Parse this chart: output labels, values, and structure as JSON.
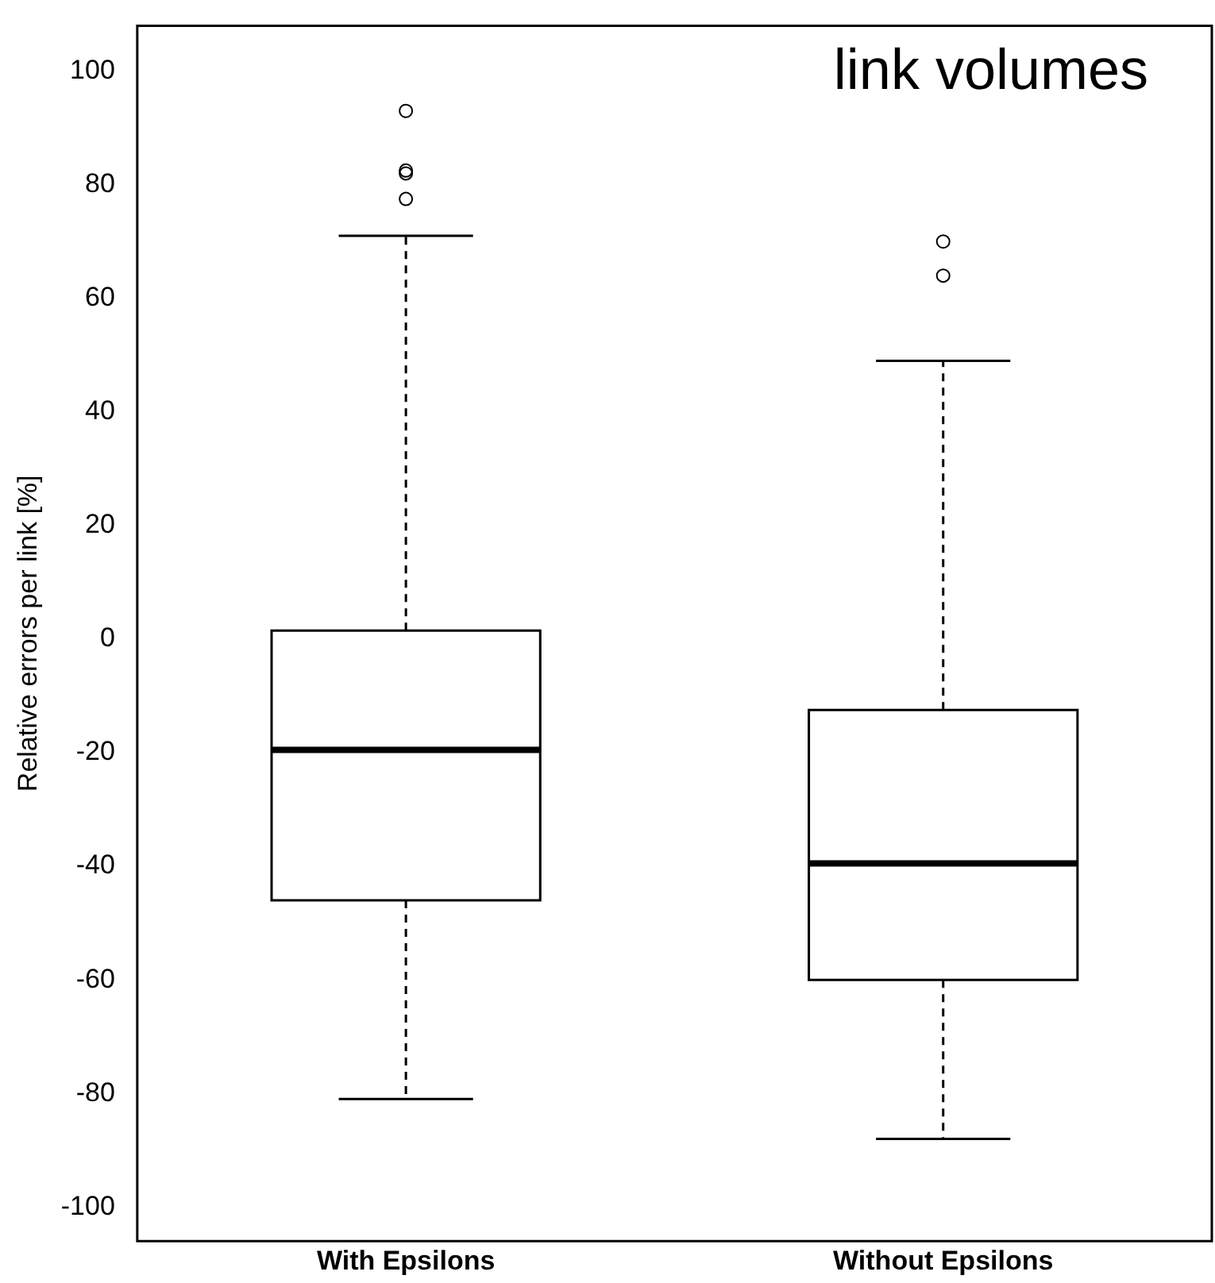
{
  "chart_data": {
    "type": "box",
    "ylabel": "Relative errors per link [%]",
    "annotations": [
      "link volumes"
    ],
    "categories": [
      "With Epsilons",
      "Without Epsilons"
    ],
    "boxes": [
      {
        "low": -81,
        "q1": -46,
        "median": -19.5,
        "q3": 1.5,
        "high": 71,
        "outliers": [
          93,
          82.5,
          82,
          77.5
        ]
      },
      {
        "low": -88,
        "q1": -60,
        "median": -39.5,
        "q3": -12.5,
        "high": 49,
        "outliers": [
          70,
          64
        ]
      }
    ],
    "color": "#000000",
    "ylim": [
      -106,
      108
    ],
    "yticks": [
      -100,
      -80,
      -60,
      -40,
      -20,
      0,
      20,
      40,
      60,
      80,
      100
    ],
    "grid": false,
    "legend": false
  }
}
